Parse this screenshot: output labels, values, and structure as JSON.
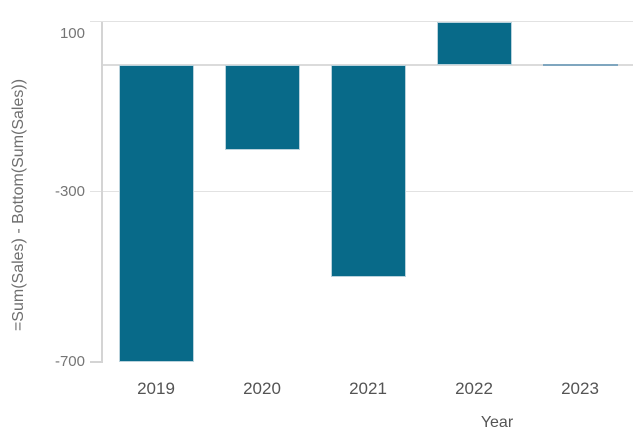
{
  "chart_data": {
    "type": "bar",
    "categories": [
      "2019",
      "2020",
      "2021",
      "2022",
      "2023"
    ],
    "values": [
      -700,
      -200,
      -500,
      100,
      0
    ],
    "title": "",
    "xlabel": "Year",
    "ylabel": "=Sum(Sales) - Bottom(Sum(Sales))",
    "ylim": [
      -700,
      105
    ],
    "yticks": [
      100,
      -300,
      -700
    ],
    "zero_line_shown": true,
    "grid": true,
    "legend": "none",
    "colors": {
      "bar_fill": "#086a89",
      "bar_border": "#b9d2dc",
      "zero_value_bar": "#7fa6bf",
      "gridline": "#e2e2e2",
      "zero_line": "#dbdbdb",
      "axis_line": "#d4d4d4",
      "y_tick_label": "#757575",
      "x_tick_label": "#545454",
      "axis_title": "#6f6f6f",
      "background": "#ffffff"
    }
  }
}
